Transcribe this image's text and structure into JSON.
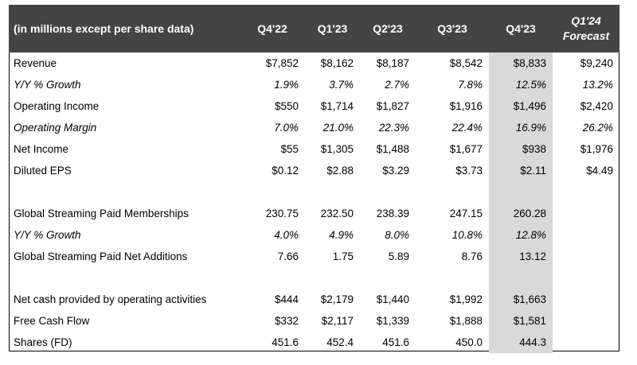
{
  "header": {
    "label": "(in millions except per share data)",
    "columns": [
      "Q4'22",
      "Q1'23",
      "Q2'23",
      "Q3'23",
      "Q4'23"
    ],
    "forecast_line1": "Q1'24",
    "forecast_line2": "Forecast"
  },
  "rows": {
    "revenue": {
      "label": "Revenue",
      "values": [
        "$7,852",
        "$8,162",
        "$8,187",
        "$8,542",
        "$8,833",
        "$9,240"
      ]
    },
    "revenue_growth": {
      "label": "Y/Y % Growth",
      "values": [
        "1.9%",
        "3.7%",
        "2.7%",
        "7.8%",
        "12.5%",
        "13.2%"
      ]
    },
    "operating_income": {
      "label": "Operating Income",
      "values": [
        "$550",
        "$1,714",
        "$1,827",
        "$1,916",
        "$1,496",
        "$2,420"
      ]
    },
    "operating_margin": {
      "label": "Operating Margin",
      "values": [
        "7.0%",
        "21.0%",
        "22.3%",
        "22.4%",
        "16.9%",
        "26.2%"
      ]
    },
    "net_income": {
      "label": "Net Income",
      "values": [
        "$55",
        "$1,305",
        "$1,488",
        "$1,677",
        "$938",
        "$1,976"
      ]
    },
    "diluted_eps": {
      "label": "Diluted EPS",
      "values": [
        "$0.12",
        "$2.88",
        "$3.29",
        "$3.73",
        "$2.11",
        "$4.49"
      ]
    },
    "paid_memberships": {
      "label": "Global Streaming Paid Memberships",
      "values": [
        "230.75",
        "232.50",
        "238.39",
        "247.15",
        "260.28",
        ""
      ]
    },
    "membership_growth": {
      "label": "Y/Y % Growth",
      "values": [
        "4.0%",
        "4.9%",
        "8.0%",
        "10.8%",
        "12.8%",
        ""
      ]
    },
    "net_additions": {
      "label": "Global Streaming Paid Net Additions",
      "values": [
        "7.66",
        "1.75",
        "5.89",
        "8.76",
        "13.12",
        ""
      ]
    },
    "operating_cash": {
      "label": "Net cash provided by operating activities",
      "values": [
        "$444",
        "$2,179",
        "$1,440",
        "$1,992",
        "$1,663",
        ""
      ]
    },
    "free_cash_flow": {
      "label": "Free Cash Flow",
      "values": [
        "$332",
        "$2,117",
        "$1,339",
        "$1,888",
        "$1,581",
        ""
      ]
    },
    "shares_fd": {
      "label": "Shares (FD)",
      "values": [
        "451.6",
        "452.4",
        "451.6",
        "450.0",
        "444.3",
        ""
      ]
    }
  },
  "colors": {
    "header_bg": "#444444",
    "header_text": "#ffffff",
    "highlight_column": "#d9d9d9"
  }
}
